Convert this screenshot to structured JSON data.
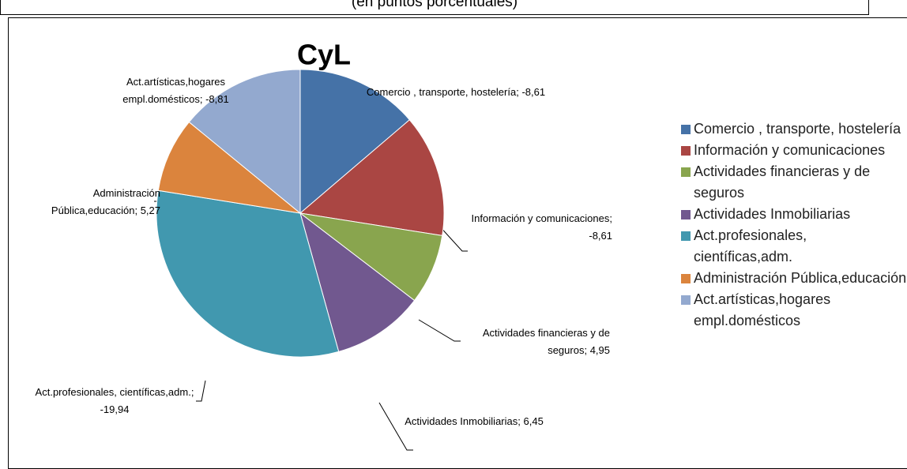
{
  "chart_data": {
    "type": "pie",
    "header": "(en puntos porcentuales)",
    "title": "CyL",
    "categories": [
      "Comercio , transporte, hostelería",
      "Información y comunicaciones",
      "Actividades financieras y de seguros",
      "Actividades Inmobiliarias",
      "Act.profesionales, científicas,adm.",
      "Administración Pública,educación",
      "Act.artísticas,hogares empl.domésticos"
    ],
    "values": [
      -8.61,
      -8.61,
      4.95,
      6.45,
      -19.94,
      5.27,
      -8.81
    ],
    "value_labels": [
      "-8,61",
      "-8,61",
      "4,95",
      "6,45",
      "-19,94",
      "5,27",
      "-8,81"
    ],
    "colors": [
      "#4572a7",
      "#aa4643",
      "#89a54e",
      "#71588f",
      "#4198af",
      "#db843d",
      "#93a9cf"
    ],
    "legend": "right"
  }
}
